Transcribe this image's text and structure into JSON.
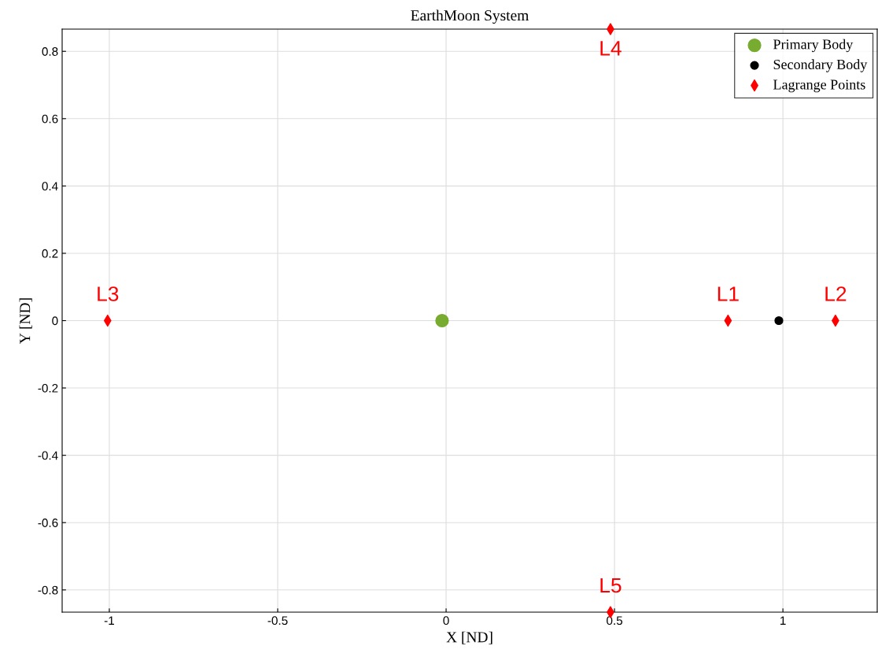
{
  "chart_data": {
    "type": "scatter",
    "title": "EarthMoon System",
    "xlabel": "X [ND]",
    "ylabel": "Y [ND]",
    "series": [
      {
        "name": "Primary Body",
        "color": "#77ac30",
        "marker": "circle",
        "x": [
          -0.012
        ],
        "values": [
          0
        ]
      },
      {
        "name": "Secondary Body",
        "color": "#000000",
        "marker": "circle",
        "x": [
          0.988
        ],
        "values": [
          0
        ]
      },
      {
        "name": "Lagrange Points",
        "color": "#ff0000",
        "marker": "diamond",
        "x": [
          0.837,
          1.156,
          -1.005,
          0.488,
          0.488
        ],
        "values": [
          0,
          0,
          0,
          0.866,
          -0.866
        ]
      }
    ],
    "annotations": [
      {
        "text": "L1",
        "x": 0.837,
        "y": 0
      },
      {
        "text": "L2",
        "x": 1.156,
        "y": 0
      },
      {
        "text": "L3",
        "x": -1.005,
        "y": 0
      },
      {
        "text": "L4",
        "x": 0.488,
        "y": 0.866
      },
      {
        "text": "L5",
        "x": 0.488,
        "y": -0.866
      }
    ],
    "xlim": [
      -1.14,
      1.28
    ],
    "ylim": [
      -0.866,
      0.866
    ],
    "xticks": [
      -1,
      -0.5,
      0,
      0.5,
      1
    ],
    "yticks": [
      -0.8,
      -0.6,
      -0.4,
      -0.2,
      0,
      0.2,
      0.4,
      0.6,
      0.8
    ],
    "grid": true,
    "legend": "top right"
  }
}
